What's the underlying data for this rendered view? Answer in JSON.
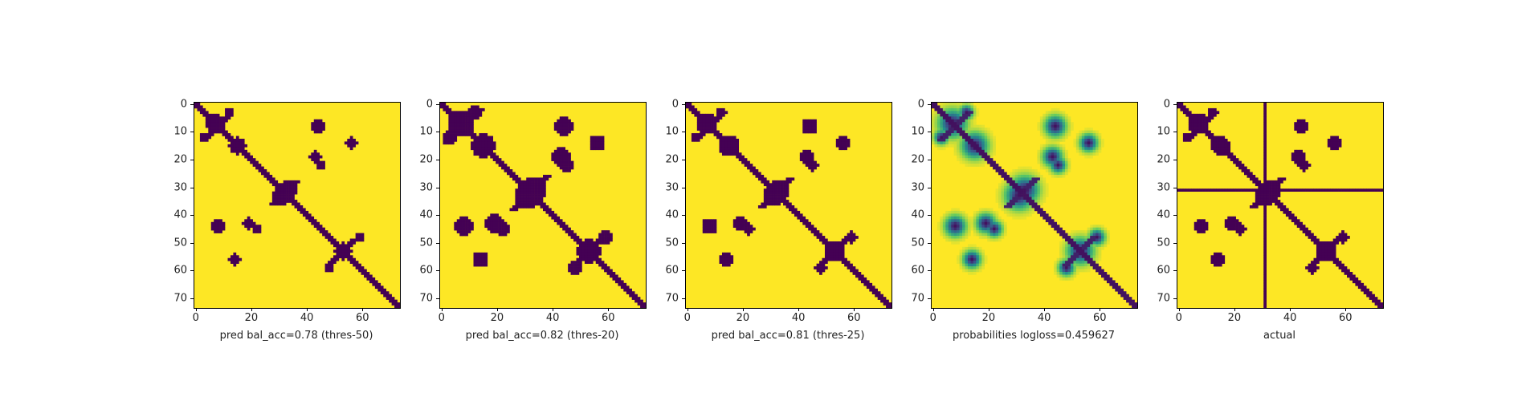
{
  "chart_data": [
    {
      "type": "heatmap",
      "variant": "binary",
      "xlabel": "pred bal_acc=0.78 (thres-50)",
      "title": "",
      "xlim": [
        0,
        73
      ],
      "ylim": [
        73,
        0
      ],
      "xticks": [
        0,
        20,
        40,
        60
      ],
      "yticks": [
        0,
        10,
        20,
        30,
        40,
        50,
        60,
        70
      ],
      "colormap": {
        "low": "#440154",
        "high": "#fde725"
      },
      "blob_scale": 0.85
    },
    {
      "type": "heatmap",
      "variant": "binary",
      "xlabel": "pred bal_acc=0.82 (thres-20)",
      "title": "",
      "xlim": [
        0,
        73
      ],
      "ylim": [
        73,
        0
      ],
      "xticks": [
        0,
        20,
        40,
        60
      ],
      "yticks": [
        0,
        10,
        20,
        30,
        40,
        50,
        60,
        70
      ],
      "colormap": {
        "low": "#440154",
        "high": "#fde725"
      },
      "blob_scale": 1.25
    },
    {
      "type": "heatmap",
      "variant": "binary",
      "xlabel": "pred bal_acc=0.81 (thres-25)",
      "title": "",
      "xlim": [
        0,
        73
      ],
      "ylim": [
        73,
        0
      ],
      "xticks": [
        0,
        20,
        40,
        60
      ],
      "yticks": [
        0,
        10,
        20,
        30,
        40,
        50,
        60,
        70
      ],
      "colormap": {
        "low": "#440154",
        "high": "#fde725"
      },
      "blob_scale": 1.05
    },
    {
      "type": "heatmap",
      "variant": "probability",
      "xlabel": "probabilities logloss=0.459627",
      "title": "",
      "xlim": [
        0,
        73
      ],
      "ylim": [
        73,
        0
      ],
      "xticks": [
        0,
        20,
        40,
        60
      ],
      "yticks": [
        0,
        10,
        20,
        30,
        40,
        50,
        60,
        70
      ],
      "colormap": {
        "low": "#440154",
        "mid": "#21918c",
        "high": "#fde725"
      },
      "blob_scale": 1.0
    },
    {
      "type": "heatmap",
      "variant": "actual",
      "xlabel": "actual",
      "title": "",
      "xlim": [
        0,
        73
      ],
      "ylim": [
        73,
        0
      ],
      "xticks": [
        0,
        20,
        40,
        60
      ],
      "yticks": [
        0,
        10,
        20,
        30,
        40,
        50,
        60,
        70
      ],
      "colormap": {
        "low": "#440154",
        "high": "#fde725"
      },
      "blob_scale": 1.0,
      "cross_line_index": 31
    }
  ]
}
